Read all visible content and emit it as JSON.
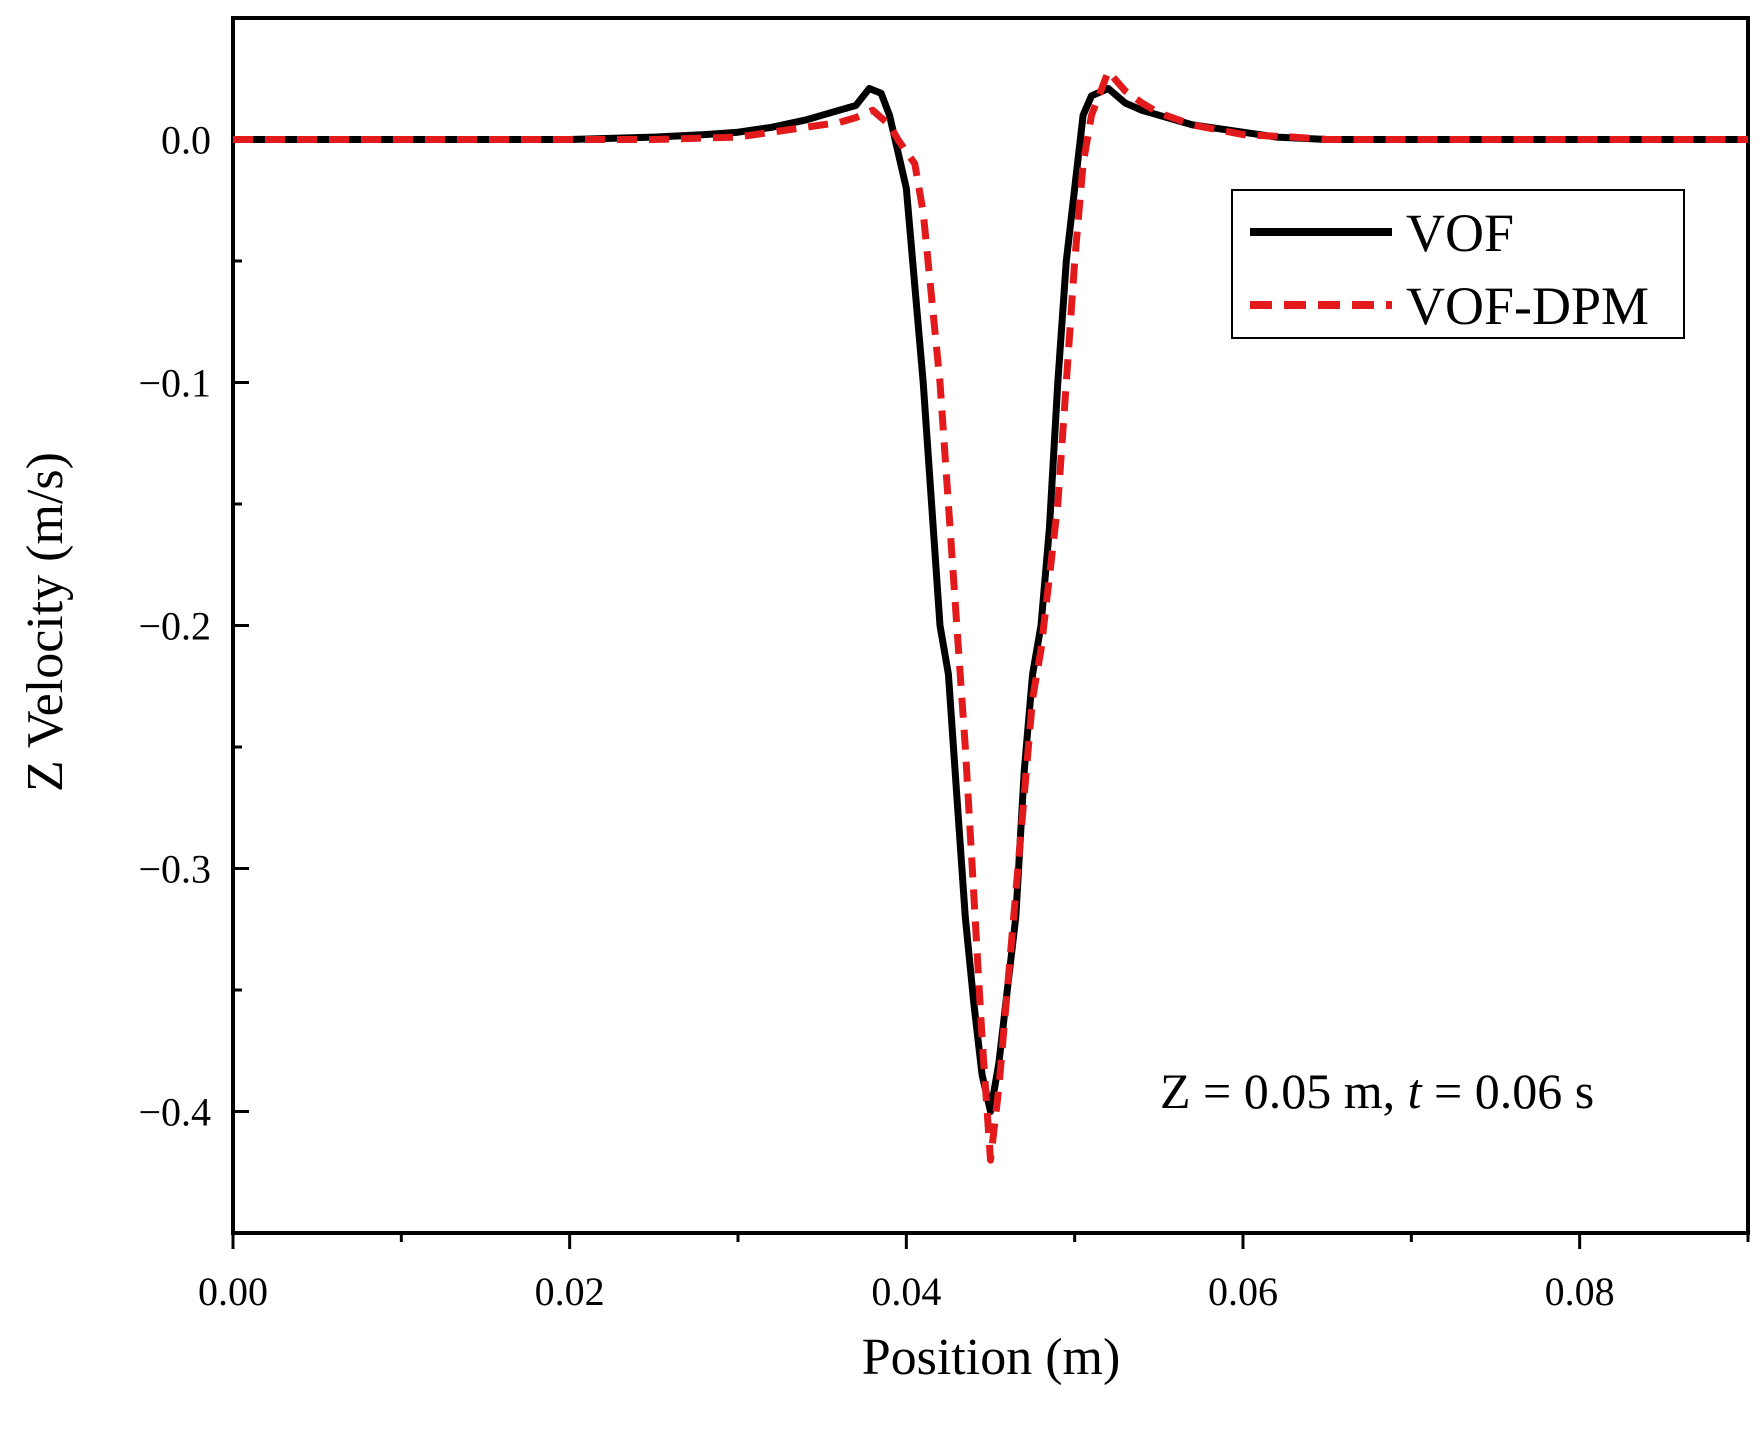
{
  "chart_data": {
    "type": "line",
    "title": "",
    "xlabel": "Position (m)",
    "ylabel": "Z Velocity (m/s)",
    "xlim": [
      0,
      0.09
    ],
    "ylim": [
      -0.45,
      0.05
    ],
    "grid": false,
    "legend_position": "top-right",
    "x_ticks": [
      0,
      0.02,
      0.04,
      0.06,
      0.08
    ],
    "x_tick_labels": [
      "0.00",
      "0.02",
      "0.04",
      "0.06",
      "0.08"
    ],
    "x_minor_ticks": [
      0.01,
      0.03,
      0.05,
      0.07,
      0.09
    ],
    "y_ticks": [
      0,
      -0.1,
      -0.2,
      -0.3,
      -0.4
    ],
    "y_tick_labels": [
      "0.0",
      "−0.1",
      "−0.2",
      "−0.3",
      "−0.4"
    ],
    "y_minor_ticks": [
      0.05,
      -0.05,
      -0.15,
      -0.25,
      -0.35,
      -0.45
    ],
    "annotation": {
      "prefix": "Z = 0.05 m, ",
      "var": "t",
      "suffix": " = 0.06 s"
    },
    "series": [
      {
        "name": "VOF",
        "color": "#000000",
        "style": "solid",
        "x": [
          0,
          0.005,
          0.01,
          0.015,
          0.02,
          0.025,
          0.028,
          0.03,
          0.032,
          0.034,
          0.035,
          0.036,
          0.037,
          0.0378,
          0.0385,
          0.039,
          0.04,
          0.041,
          0.042,
          0.0425,
          0.043,
          0.0435,
          0.044,
          0.0445,
          0.045,
          0.0455,
          0.046,
          0.0465,
          0.047,
          0.0475,
          0.048,
          0.0485,
          0.049,
          0.0495,
          0.05,
          0.0505,
          0.051,
          0.052,
          0.053,
          0.054,
          0.055,
          0.057,
          0.06,
          0.062,
          0.065,
          0.07,
          0.075,
          0.08,
          0.085,
          0.09
        ],
        "y": [
          0,
          0,
          0,
          0,
          0,
          0.001,
          0.002,
          0.003,
          0.005,
          0.008,
          0.01,
          0.012,
          0.014,
          0.021,
          0.019,
          0.01,
          -0.02,
          -0.1,
          -0.2,
          -0.22,
          -0.27,
          -0.32,
          -0.355,
          -0.385,
          -0.4,
          -0.38,
          -0.35,
          -0.32,
          -0.26,
          -0.22,
          -0.2,
          -0.16,
          -0.1,
          -0.05,
          -0.02,
          0.01,
          0.018,
          0.021,
          0.015,
          0.012,
          0.01,
          0.006,
          0.003,
          0.001,
          0,
          0,
          0,
          0,
          0,
          0
        ]
      },
      {
        "name": "VOF-DPM",
        "color": "#e31a1c",
        "style": "dashed",
        "x": [
          0,
          0.005,
          0.01,
          0.015,
          0.02,
          0.025,
          0.03,
          0.032,
          0.034,
          0.036,
          0.037,
          0.038,
          0.039,
          0.0395,
          0.04,
          0.0405,
          0.041,
          0.042,
          0.043,
          0.0435,
          0.044,
          0.0445,
          0.045,
          0.0455,
          0.046,
          0.0465,
          0.047,
          0.0475,
          0.048,
          0.049,
          0.0495,
          0.05,
          0.0505,
          0.051,
          0.052,
          0.053,
          0.054,
          0.055,
          0.057,
          0.06,
          0.063,
          0.065,
          0.07,
          0.075,
          0.08,
          0.085,
          0.09
        ],
        "y": [
          0,
          0,
          0,
          0,
          0,
          0,
          0.001,
          0.003,
          0.005,
          0.007,
          0.009,
          0.012,
          0.006,
          0.0,
          -0.005,
          -0.01,
          -0.03,
          -0.1,
          -0.2,
          -0.25,
          -0.31,
          -0.37,
          -0.42,
          -0.39,
          -0.35,
          -0.31,
          -0.27,
          -0.23,
          -0.21,
          -0.15,
          -0.1,
          -0.05,
          -0.01,
          0.01,
          0.028,
          0.02,
          0.015,
          0.011,
          0.006,
          0.002,
          0.001,
          0,
          0,
          0,
          0,
          0,
          0
        ]
      }
    ]
  }
}
